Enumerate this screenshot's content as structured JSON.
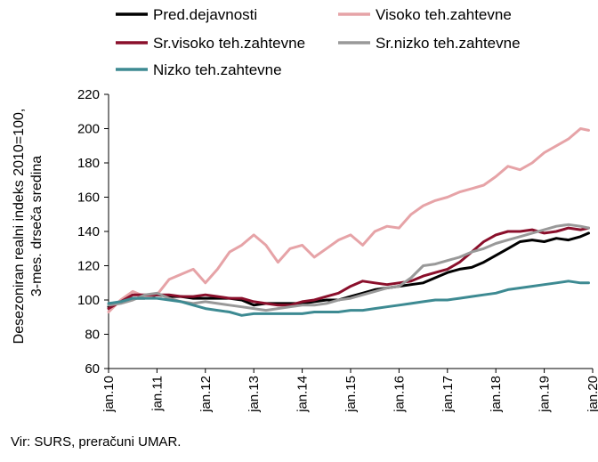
{
  "chart_data": {
    "type": "line",
    "ylabel_line1": "Desezoniran realni indeks 2010=100,",
    "ylabel_line2": "3-mes. drseča sredina",
    "ylim": [
      60,
      220
    ],
    "yticks": [
      60,
      80,
      100,
      120,
      140,
      160,
      180,
      200,
      220
    ],
    "xlim": [
      "2010-01",
      "2020-01"
    ],
    "xticks": [
      "jan.10",
      "jan.11",
      "jan.12",
      "jan.13",
      "jan.14",
      "jan.15",
      "jan.16",
      "jan.17",
      "jan.18",
      "jan.19",
      "jan.20"
    ],
    "grid": false,
    "legend_position": "top",
    "x": [
      "2010-01",
      "2010-04",
      "2010-07",
      "2010-10",
      "2011-01",
      "2011-04",
      "2011-07",
      "2011-10",
      "2012-01",
      "2012-04",
      "2012-07",
      "2012-10",
      "2013-01",
      "2013-04",
      "2013-07",
      "2013-10",
      "2014-01",
      "2014-04",
      "2014-07",
      "2014-10",
      "2015-01",
      "2015-04",
      "2015-07",
      "2015-10",
      "2016-01",
      "2016-04",
      "2016-07",
      "2016-10",
      "2017-01",
      "2017-04",
      "2017-07",
      "2017-10",
      "2018-01",
      "2018-04",
      "2018-07",
      "2018-10",
      "2019-01",
      "2019-04",
      "2019-07",
      "2019-10",
      "2019-12"
    ],
    "series": [
      {
        "name": "Pred.dejavnosti",
        "color": "#000000",
        "values": [
          96,
          99,
          101,
          101,
          103,
          102,
          102,
          101,
          101,
          101,
          101,
          100,
          97,
          98,
          98,
          98,
          98,
          99,
          100,
          100,
          102,
          104,
          106,
          107,
          108,
          109,
          110,
          113,
          116,
          118,
          119,
          122,
          126,
          130,
          134,
          135,
          134,
          136,
          135,
          137,
          139
        ]
      },
      {
        "name": "Visoko teh.zahtevne",
        "color": "#e6a3a7",
        "values": [
          93,
          100,
          105,
          102,
          103,
          112,
          115,
          118,
          110,
          118,
          128,
          132,
          138,
          132,
          122,
          130,
          132,
          125,
          130,
          135,
          138,
          132,
          140,
          143,
          142,
          150,
          155,
          158,
          160,
          163,
          165,
          167,
          172,
          178,
          176,
          180,
          186,
          190,
          194,
          200,
          199
        ]
      },
      {
        "name": "Sr.visoko teh.zahtevne",
        "color": "#8a0f2b",
        "values": [
          95,
          99,
          103,
          103,
          103,
          103,
          102,
          102,
          103,
          102,
          101,
          101,
          99,
          98,
          97,
          97,
          99,
          100,
          102,
          104,
          108,
          111,
          110,
          109,
          110,
          111,
          114,
          116,
          118,
          122,
          128,
          134,
          138,
          140,
          140,
          141,
          139,
          140,
          142,
          141,
          142
        ]
      },
      {
        "name": "Sr.nizko teh.zahtevne",
        "color": "#999999",
        "values": [
          97,
          98,
          100,
          103,
          104,
          101,
          99,
          98,
          99,
          98,
          97,
          96,
          95,
          94,
          95,
          96,
          97,
          97,
          98,
          100,
          101,
          103,
          105,
          107,
          108,
          113,
          120,
          121,
          123,
          125,
          128,
          130,
          133,
          135,
          137,
          139,
          141,
          143,
          144,
          143,
          142
        ]
      },
      {
        "name": "Nizko teh.zahtevne",
        "color": "#3d8a92",
        "values": [
          98,
          99,
          101,
          101,
          101,
          100,
          99,
          97,
          95,
          94,
          93,
          91,
          92,
          92,
          92,
          92,
          92,
          93,
          93,
          93,
          94,
          94,
          95,
          96,
          97,
          98,
          99,
          100,
          100,
          101,
          102,
          103,
          104,
          106,
          107,
          108,
          109,
          110,
          111,
          110,
          110
        ]
      }
    ]
  },
  "footer": {
    "source": "Vir: SURS, preračuni UMAR."
  }
}
